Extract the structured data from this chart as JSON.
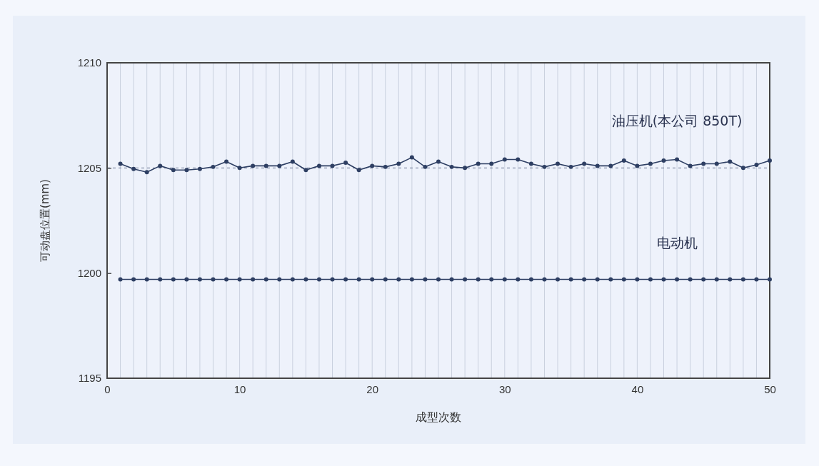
{
  "chart_data": {
    "type": "line",
    "xlabel": "成型次数",
    "ylabel": "可动盘位置(mm)",
    "x": [
      1,
      2,
      3,
      4,
      5,
      6,
      7,
      8,
      9,
      10,
      11,
      12,
      13,
      14,
      15,
      16,
      17,
      18,
      19,
      20,
      21,
      22,
      23,
      24,
      25,
      26,
      27,
      28,
      29,
      30,
      31,
      32,
      33,
      34,
      35,
      36,
      37,
      38,
      39,
      40,
      41,
      42,
      43,
      44,
      45,
      46,
      47,
      48,
      49,
      50
    ],
    "series": [
      {
        "name": "油压机(本公司 850T)",
        "color": "#2e3f63",
        "values": [
          1205.2,
          1204.95,
          1204.8,
          1205.1,
          1204.9,
          1204.9,
          1204.95,
          1205.05,
          1205.3,
          1205.0,
          1205.1,
          1205.1,
          1205.1,
          1205.3,
          1204.9,
          1205.1,
          1205.1,
          1205.25,
          1204.9,
          1205.1,
          1205.05,
          1205.2,
          1205.5,
          1205.05,
          1205.3,
          1205.05,
          1205.0,
          1205.2,
          1205.2,
          1205.4,
          1205.4,
          1205.2,
          1205.05,
          1205.2,
          1205.05,
          1205.2,
          1205.1,
          1205.1,
          1205.35,
          1205.1,
          1205.2,
          1205.35,
          1205.4,
          1205.1,
          1205.2,
          1205.2,
          1205.3,
          1205.0,
          1205.15,
          1205.35
        ]
      },
      {
        "name": "电动机",
        "color": "#2e3f63",
        "values": [
          1199.7,
          1199.7,
          1199.7,
          1199.7,
          1199.7,
          1199.7,
          1199.7,
          1199.7,
          1199.7,
          1199.7,
          1199.7,
          1199.7,
          1199.7,
          1199.7,
          1199.7,
          1199.7,
          1199.7,
          1199.7,
          1199.7,
          1199.7,
          1199.7,
          1199.7,
          1199.7,
          1199.7,
          1199.7,
          1199.7,
          1199.7,
          1199.7,
          1199.7,
          1199.7,
          1199.7,
          1199.7,
          1199.7,
          1199.7,
          1199.7,
          1199.7,
          1199.7,
          1199.7,
          1199.7,
          1199.7,
          1199.7,
          1199.7,
          1199.7,
          1199.7,
          1199.7,
          1199.7,
          1199.7,
          1199.7,
          1199.7,
          1199.7
        ]
      }
    ],
    "xlim": [
      0,
      50
    ],
    "xticks": [
      0,
      {
        "value": 1,
        "label": null
      },
      {
        "value": 2,
        "label": null
      },
      {
        "value": 3,
        "label": null
      },
      {
        "value": 4,
        "label": null
      },
      {
        "value": 5,
        "label": null
      },
      {
        "value": 6,
        "label": null
      },
      {
        "value": 7,
        "label": null
      },
      {
        "value": 8,
        "label": null
      },
      {
        "value": 9,
        "label": null
      },
      10,
      {
        "value": 11,
        "label": null
      },
      {
        "value": 12,
        "label": null
      },
      {
        "value": 13,
        "label": null
      },
      {
        "value": 14,
        "label": null
      },
      {
        "value": 15,
        "label": null
      },
      {
        "value": 16,
        "label": null
      },
      {
        "value": 17,
        "label": null
      },
      {
        "value": 18,
        "label": null
      },
      {
        "value": 19,
        "label": null
      },
      20,
      {
        "value": 21,
        "label": null
      },
      {
        "value": 22,
        "label": null
      },
      {
        "value": 23,
        "label": null
      },
      {
        "value": 24,
        "label": null
      },
      {
        "value": 25,
        "label": null
      },
      {
        "value": 26,
        "label": null
      },
      {
        "value": 27,
        "label": null
      },
      {
        "value": 28,
        "label": null
      },
      {
        "value": 29,
        "label": null
      },
      30,
      {
        "value": 31,
        "label": null
      },
      {
        "value": 32,
        "label": null
      },
      {
        "value": 33,
        "label": null
      },
      {
        "value": 34,
        "label": null
      },
      {
        "value": 35,
        "label": null
      },
      {
        "value": 36,
        "label": null
      },
      {
        "value": 37,
        "label": null
      },
      {
        "value": 38,
        "label": null
      },
      {
        "value": 39,
        "label": null
      },
      40,
      {
        "value": 41,
        "label": null
      },
      {
        "value": 42,
        "label": null
      },
      {
        "value": 43,
        "label": null
      },
      {
        "value": 44,
        "label": null
      },
      {
        "value": 45,
        "label": null
      },
      {
        "value": 46,
        "label": null
      },
      {
        "value": 47,
        "label": null
      },
      {
        "value": 48,
        "label": null
      },
      {
        "value": 49,
        "label": null
      },
      50
    ],
    "ylim": [
      1195,
      1210
    ],
    "yticks": [
      1195,
      1200,
      1205,
      1210
    ],
    "grid": "x",
    "marker": "circle",
    "line_style": "solid",
    "ref_lines": [
      {
        "axis": "y",
        "value": 1205,
        "color": "#6b7896",
        "line_style": "dashed"
      }
    ]
  }
}
